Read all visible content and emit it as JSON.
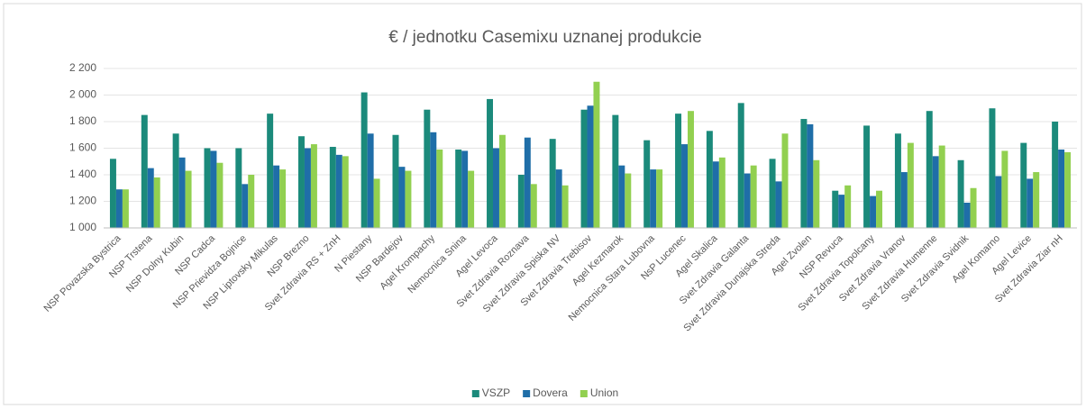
{
  "chart_data": {
    "type": "bar",
    "title": "€ / jednotku Casemixu uznanej produkcie",
    "categories": [
      "NSP Povazska Bystrica",
      "NSP Trstena",
      "NSP Dolny Kubin",
      "NSP Cadca",
      "NSP Prievidza Bojnice",
      "NSP Liptovsky Mikulas",
      "NSP Brezno",
      "Svet Zdravia RS + ZnH",
      "N Piestany",
      "NSP Bardejov",
      "Agel Krompachy",
      "Nemocnica Snina",
      "Agel Levoca",
      "Svet Zdravia Roznava",
      "Svet Zdravia Spiska NV",
      "Svet Zdravia Trebisov",
      "Agel Kezmarok",
      "Nemocnica Stara Lubovna",
      "NsP Lucenec",
      "Agel Skalica",
      "Svet Zdravia Galanta",
      "Svet Zdravia Dunajska Streda",
      "Agel Zvolen",
      "NSP Revuca",
      "Svet Zdravia Topolcany",
      "Svet Zdravia Vranov",
      "Svet Zdravia Humenne",
      "Svet Zdravia Svidnik",
      "Agel Komarno",
      "Agel Levice",
      "Svet Zdravia Ziar nH"
    ],
    "series": [
      {
        "name": "VSZP",
        "color": "#1b8a7b",
        "values": [
          1520,
          1850,
          1710,
          1600,
          1600,
          1860,
          1690,
          1610,
          2020,
          1700,
          1890,
          1590,
          1970,
          1400,
          1670,
          1890,
          1850,
          1660,
          1860,
          1730,
          1940,
          1520,
          1820,
          1280,
          1770,
          1710,
          1880,
          1510,
          1900,
          1640,
          1800
        ]
      },
      {
        "name": "Dovera",
        "color": "#1f6ea8",
        "values": [
          1290,
          1450,
          1530,
          1580,
          1330,
          1470,
          1600,
          1550,
          1710,
          1460,
          1720,
          1580,
          1600,
          1680,
          1440,
          1920,
          1470,
          1440,
          1630,
          1500,
          1410,
          1350,
          1780,
          1250,
          1240,
          1420,
          1540,
          1190,
          1390,
          1370,
          1590
        ]
      },
      {
        "name": "Union",
        "color": "#92d050",
        "values": [
          1290,
          1380,
          1430,
          1490,
          1400,
          1440,
          1630,
          1540,
          1370,
          1430,
          1590,
          1430,
          1700,
          1330,
          1320,
          2100,
          1410,
          1440,
          1880,
          1530,
          1470,
          1710,
          1510,
          1320,
          1280,
          1640,
          1620,
          1300,
          1580,
          1420,
          1570
        ]
      }
    ],
    "ylim": [
      1000,
      2200
    ],
    "yticks": [
      {
        "value": 1000,
        "label": "1 000"
      },
      {
        "value": 1200,
        "label": "1 200"
      },
      {
        "value": 1400,
        "label": "1 400"
      },
      {
        "value": 1600,
        "label": "1 600"
      },
      {
        "value": 1800,
        "label": "1 800"
      },
      {
        "value": 2000,
        "label": "2 000"
      },
      {
        "value": 2200,
        "label": "2 200"
      }
    ],
    "grid": true
  }
}
